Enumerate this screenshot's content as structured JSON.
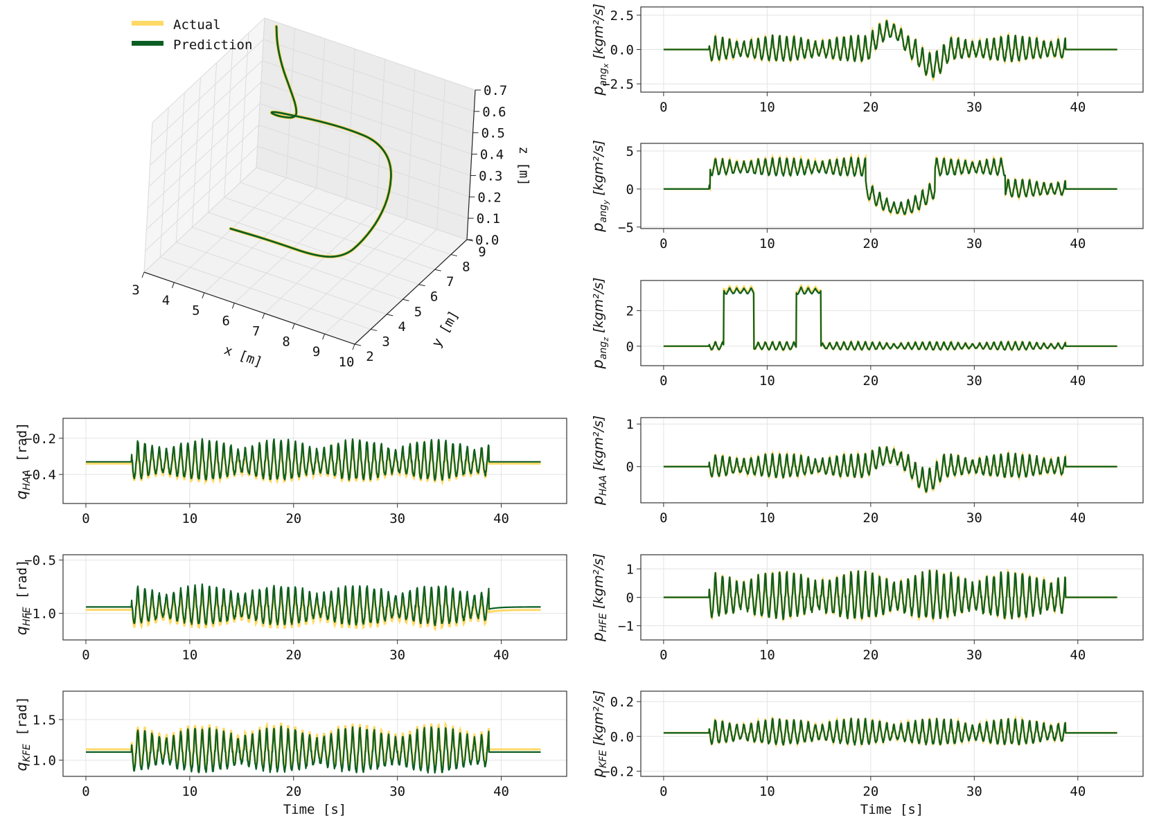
{
  "colors": {
    "actual": "#ffd966",
    "prediction": "#0b5e23"
  },
  "legend": {
    "actual": "Actual",
    "prediction": "Prediction"
  },
  "chart_data": [
    {
      "type": "line3d",
      "id": "traj3d",
      "xlabel": "x [m]",
      "ylabel": "y [m]",
      "zlabel": "z [m]",
      "xlim": [
        3,
        10
      ],
      "ylim": [
        2,
        9
      ],
      "zlim": [
        0.0,
        0.7
      ],
      "xticks": [
        "3",
        "4",
        "5",
        "6",
        "7",
        "8",
        "9",
        "10"
      ],
      "yticks": [
        "2",
        "3",
        "4",
        "5",
        "6",
        "7",
        "8",
        "9"
      ],
      "zticks": [
        "0.0",
        "0.1",
        "0.2",
        "0.3",
        "0.4",
        "0.5",
        "0.6",
        "0.7"
      ],
      "series": [
        {
          "name": "Actual",
          "x": [
            4.6,
            5.8,
            7.3,
            8.0,
            8.4,
            8.7,
            8.8,
            8.5,
            7.8,
            6.9,
            5.9,
            5.1,
            4.6,
            4.4,
            4.6,
            5.0,
            4.9,
            4.5,
            4.0,
            3.6,
            3.4
          ],
          "y": [
            4.3,
            4.6,
            4.8,
            5.1,
            5.4,
            5.8,
            6.2,
            6.8,
            7.2,
            7.2,
            7.0,
            6.7,
            6.7,
            6.9,
            7.2,
            7.4,
            7.6,
            7.9,
            8.3,
            8.7,
            9.0
          ],
          "z": [
            0.12,
            0.1,
            0.08,
            0.1,
            0.17,
            0.26,
            0.36,
            0.44,
            0.48,
            0.49,
            0.5,
            0.51,
            0.5,
            0.47,
            0.44,
            0.44,
            0.47,
            0.52,
            0.57,
            0.63,
            0.68
          ]
        },
        {
          "name": "Prediction",
          "x": [
            4.6,
            5.8,
            7.3,
            8.0,
            8.4,
            8.7,
            8.8,
            8.5,
            7.8,
            6.9,
            5.9,
            5.1,
            4.6,
            4.4,
            4.6,
            5.0,
            4.9,
            4.5,
            4.0,
            3.6,
            3.4
          ],
          "y": [
            4.3,
            4.6,
            4.8,
            5.1,
            5.4,
            5.8,
            6.2,
            6.8,
            7.2,
            7.2,
            7.0,
            6.7,
            6.7,
            6.9,
            7.2,
            7.4,
            7.6,
            7.9,
            8.3,
            8.7,
            9.0
          ],
          "z": [
            0.12,
            0.1,
            0.08,
            0.1,
            0.17,
            0.26,
            0.36,
            0.44,
            0.48,
            0.49,
            0.5,
            0.51,
            0.5,
            0.47,
            0.44,
            0.44,
            0.47,
            0.52,
            0.57,
            0.63,
            0.68
          ]
        }
      ]
    },
    {
      "type": "line",
      "id": "qHAA",
      "ylabel": [
        "q",
        "HAA",
        "[rad]"
      ],
      "xlim": [
        -2.2,
        46.3
      ],
      "ylim": [
        -0.56,
        -0.09
      ],
      "yticks": [
        -0.2,
        -0.4
      ],
      "yticklabels": [
        "−0.2",
        "−0.4"
      ],
      "xticks": [
        0,
        10,
        20,
        30,
        40
      ],
      "base": -0.33,
      "amp": 0.12,
      "events": [],
      "seed": 1,
      "xlabel": ""
    },
    {
      "type": "line",
      "id": "qHFE",
      "ylabel": [
        "q",
        "HFE",
        "[rad]"
      ],
      "xlim": [
        -2.2,
        46.3
      ],
      "ylim": [
        -1.25,
        -0.45
      ],
      "yticks": [
        -0.5,
        -1.0
      ],
      "yticklabels": [
        "−0.5",
        "−1.0"
      ],
      "xticks": [
        0,
        10,
        20,
        30,
        40
      ],
      "base": -0.94,
      "amp": 0.2,
      "events": [],
      "seed": 2,
      "xlabel": ""
    },
    {
      "type": "line",
      "id": "qKFE",
      "ylabel": [
        "q",
        "KFE",
        "[rad]"
      ],
      "xlim": [
        -2.2,
        46.3
      ],
      "ylim": [
        0.8,
        1.85
      ],
      "yticks": [
        1.5,
        1.0
      ],
      "yticklabels": [
        "1.5",
        "1.0"
      ],
      "xticks": [
        0,
        10,
        20,
        30,
        40
      ],
      "base": 1.1,
      "amp": 0.3,
      "events": [],
      "seed": 3,
      "xlabel": "Time [s]"
    },
    {
      "type": "line",
      "id": "pangx",
      "ylabel": [
        "p",
        "ang",
        "x"
      ],
      "xlim": [
        -2.2,
        46.3
      ],
      "ylim": [
        -3.1,
        3.1
      ],
      "yticks": [
        2.5,
        0.0,
        -2.5
      ],
      "yticklabels": [
        "2.5",
        "0.0",
        "−2.5"
      ],
      "xticks": [
        0,
        10,
        20,
        30,
        40
      ],
      "base": 0,
      "amp": 1.0,
      "events": [
        [
          19.8,
          23.8,
          1.4
        ],
        [
          24.2,
          27.6,
          -1.2
        ]
      ],
      "seed": 4,
      "xlabel": ""
    },
    {
      "type": "line",
      "id": "pangy",
      "ylabel": [
        "p",
        "ang",
        "y"
      ],
      "xlim": [
        -2.2,
        46.3
      ],
      "ylim": [
        -5.2,
        6.0
      ],
      "yticks": [
        5,
        0,
        -5
      ],
      "yticklabels": [
        "5",
        "0",
        "−5"
      ],
      "xticks": [
        0,
        10,
        20,
        30,
        40
      ],
      "base": 0,
      "amp": 1.3,
      "events": [
        [
          4.5,
          19.5,
          2.8
        ],
        [
          19.5,
          26.2,
          -2.6
        ],
        [
          26.2,
          33.0,
          2.8
        ]
      ],
      "seed": 5,
      "xlabel": ""
    },
    {
      "type": "line",
      "id": "pangz",
      "ylabel": [
        "p",
        "ang",
        "z"
      ],
      "xlim": [
        -2.2,
        46.3
      ],
      "ylim": [
        -1.1,
        3.7
      ],
      "yticks": [
        2,
        0
      ],
      "yticklabels": [
        "2",
        "0"
      ],
      "xticks": [
        0,
        10,
        20,
        30,
        40
      ],
      "base": 0,
      "amp": 0.25,
      "events": [
        [
          5.8,
          8.7,
          3.1
        ],
        [
          12.8,
          15.2,
          3.1
        ]
      ],
      "seed": 6,
      "xlabel": ""
    },
    {
      "type": "line",
      "id": "pHAA",
      "ylabel": [
        "p",
        "HAA",
        ""
      ],
      "xlim": [
        -2.2,
        46.3
      ],
      "ylim": [
        -0.85,
        1.15
      ],
      "yticks": [
        1,
        0
      ],
      "yticklabels": [
        "1",
        "0"
      ],
      "xticks": [
        0,
        10,
        20,
        30,
        40
      ],
      "base": 0,
      "amp": 0.3,
      "events": [
        [
          19.6,
          23.8,
          0.25
        ],
        [
          23.8,
          27.0,
          -0.35
        ]
      ],
      "seed": 7,
      "xlabel": ""
    },
    {
      "type": "line",
      "id": "pHFE",
      "ylabel": [
        "p",
        "HFE",
        ""
      ],
      "xlim": [
        -2.2,
        46.3
      ],
      "ylim": [
        -1.5,
        1.5
      ],
      "yticks": [
        1,
        0,
        -1
      ],
      "yticklabels": [
        "1",
        "0",
        "−1"
      ],
      "xticks": [
        0,
        10,
        20,
        30,
        40
      ],
      "base": 0,
      "amp": 0.9,
      "events": [],
      "seed": 8,
      "xlabel": ""
    },
    {
      "type": "line",
      "id": "pKFE",
      "ylabel": [
        "p",
        "KFE",
        ""
      ],
      "xlim": [
        -2.2,
        46.3
      ],
      "ylim": [
        -0.23,
        0.26
      ],
      "yticks": [
        0.2,
        0.0,
        -0.2
      ],
      "yticklabels": [
        "0.2",
        "0.0",
        "−0.2"
      ],
      "xticks": [
        0,
        10,
        20,
        30,
        40
      ],
      "base": 0.02,
      "amp": 0.08,
      "events": [],
      "seed": 9,
      "xlabel": "Time [s]"
    }
  ],
  "units": {
    "momentum": "[kgm²/s]"
  }
}
